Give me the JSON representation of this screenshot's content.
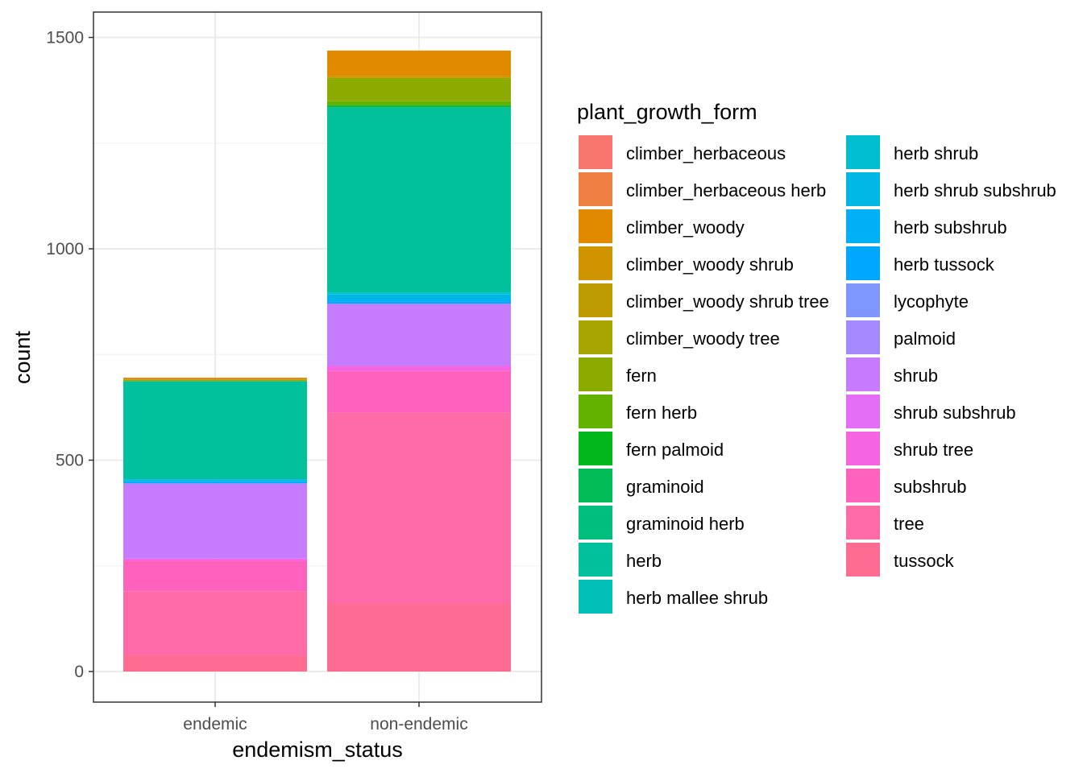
{
  "chart_data": {
    "type": "bar",
    "stacked": true,
    "xlabel": "endemism_status",
    "ylabel": "count",
    "categories": [
      "endemic",
      "non-endemic"
    ],
    "ylim": [
      0,
      1580
    ],
    "yticks": [
      0,
      500,
      1000,
      1500
    ],
    "grid": true,
    "legend": {
      "title": "plant_growth_form",
      "position": "right",
      "columns": 2
    },
    "series": [
      {
        "name": "climber_herbaceous",
        "color": "#F8766D",
        "values": [
          0,
          0
        ]
      },
      {
        "name": "climber_herbaceous herb",
        "color": "#EE8044",
        "values": [
          0,
          0
        ]
      },
      {
        "name": "climber_woody",
        "color": "#E18A00",
        "values": [
          5,
          60
        ]
      },
      {
        "name": "climber_woody shrub",
        "color": "#D09400",
        "values": [
          0,
          5
        ]
      },
      {
        "name": "climber_woody shrub tree",
        "color": "#BE9C00",
        "values": [
          0,
          0
        ]
      },
      {
        "name": "climber_woody tree",
        "color": "#A8A400",
        "values": [
          0,
          0
        ]
      },
      {
        "name": "fern",
        "color": "#8CAB00",
        "values": [
          3,
          55
        ]
      },
      {
        "name": "fern herb",
        "color": "#64B200",
        "values": [
          0,
          10
        ]
      },
      {
        "name": "fern palmoid",
        "color": "#00B81B",
        "values": [
          0,
          0
        ]
      },
      {
        "name": "graminoid",
        "color": "#00BC56",
        "values": [
          0,
          5
        ]
      },
      {
        "name": "graminoid herb",
        "color": "#00BE7D",
        "values": [
          0,
          0
        ]
      },
      {
        "name": "herb",
        "color": "#00C19C",
        "values": [
          232,
          437
        ]
      },
      {
        "name": "herb mallee shrub",
        "color": "#00C0B7",
        "values": [
          0,
          0
        ]
      },
      {
        "name": "herb shrub",
        "color": "#00BDD0",
        "values": [
          0,
          5
        ]
      },
      {
        "name": "herb shrub subshrub",
        "color": "#00B7E5",
        "values": [
          5,
          12
        ]
      },
      {
        "name": "herb subshrub",
        "color": "#00B0F6",
        "values": [
          5,
          5
        ]
      },
      {
        "name": "herb tussock",
        "color": "#00A7FF",
        "values": [
          0,
          5
        ]
      },
      {
        "name": "lycophyte",
        "color": "#7F96FF",
        "values": [
          0,
          0
        ]
      },
      {
        "name": "palmoid",
        "color": "#A58AFF",
        "values": [
          0,
          0
        ]
      },
      {
        "name": "shrub",
        "color": "#C77CFF",
        "values": [
          178,
          147
        ]
      },
      {
        "name": "shrub subshrub",
        "color": "#E46DF6",
        "values": [
          0,
          0
        ]
      },
      {
        "name": "shrub tree",
        "color": "#F564E3",
        "values": [
          5,
          12
        ]
      },
      {
        "name": "subshrub",
        "color": "#FF62BC",
        "values": [
          72,
          98
        ]
      },
      {
        "name": "tree",
        "color": "#FF6BA7",
        "values": [
          152,
          453
        ]
      },
      {
        "name": "tussock",
        "color": "#FF6C91",
        "values": [
          38,
          160
        ]
      }
    ]
  }
}
